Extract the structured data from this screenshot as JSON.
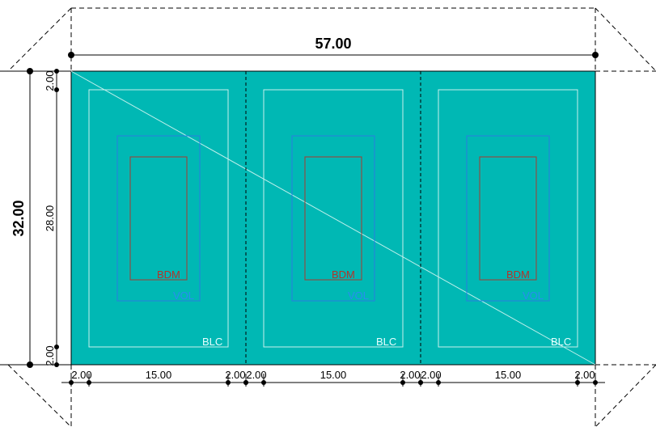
{
  "colors": {
    "site_fill": "#00b8b4",
    "site_stroke": "#000000",
    "blc_stroke": "#c8f0ec",
    "vol_stroke": "#2a7de1",
    "bdm_stroke": "#a83a2e",
    "bdm_text": "#b5332a",
    "vol_text": "#2a8cf0",
    "blc_text": "#e8ffff"
  },
  "dimensions": {
    "overall_width": "57.00",
    "overall_height": "32.00",
    "inner_height": "28.00",
    "top_setback": "2.00",
    "bottom_setback": "2.00",
    "bottom": [
      "2.00",
      "15.00",
      "2.00",
      "2.00",
      "15.00",
      "2.00",
      "2.00",
      "15.00",
      "2.00"
    ]
  },
  "lots": [
    {
      "bdm_label": "BDM",
      "vol_label": "VOL",
      "blc_label": "BLC"
    },
    {
      "bdm_label": "BDM",
      "vol_label": "VOL",
      "blc_label": "BLC"
    },
    {
      "bdm_label": "BDM",
      "vol_label": "VOL",
      "blc_label": "BLC"
    }
  ]
}
